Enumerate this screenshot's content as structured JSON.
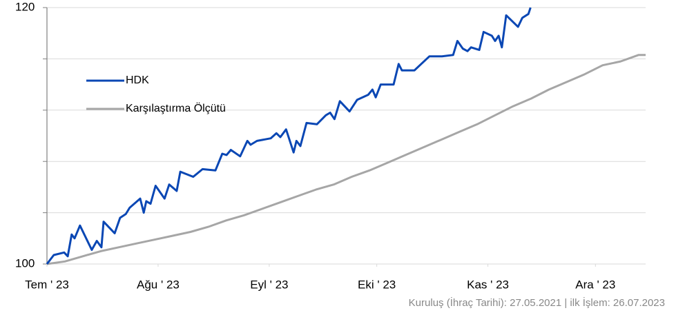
{
  "chart_data": {
    "type": "line",
    "series": [
      {
        "name": "HDK",
        "color": "#0a47b4",
        "x": [
          0,
          1.9,
          4.8,
          5.8,
          6.9,
          7.7,
          9.2,
          12.5,
          13.9,
          15.2,
          15.8,
          18.9,
          20.4,
          22.0,
          23.1,
          26.0,
          27.0,
          27.7,
          28.9,
          30.3,
          32.8,
          34.1,
          36.2,
          37.2,
          40.8,
          43.4,
          47.0,
          48.9,
          50.1,
          51.3,
          53.9,
          55.9,
          56.8,
          58.6,
          62.4,
          64.0,
          65.1,
          66.7,
          68.8,
          69.6,
          70.7,
          72.4,
          75.3,
          77.8,
          79.0,
          80.2,
          81.7,
          84.4,
          86.5,
          89.6,
          90.8,
          91.7,
          93.1,
          96.7,
          98.1,
          99.0,
          102.5,
          104.4,
          106.7,
          110.2,
          113.3,
          114.5,
          116.0,
          117.3,
          118.3,
          120.6,
          121.8,
          124.1,
          125.0,
          126.0,
          126.9,
          128.1,
          131.4,
          132.6,
          134.3,
          134.9
        ],
        "values": [
          100,
          100.7,
          100.9,
          100.6,
          102.3,
          102.0,
          103.0,
          101.1,
          101.8,
          101.3,
          103.3,
          102.4,
          103.6,
          103.9,
          104.4,
          105.1,
          104.0,
          104.9,
          104.7,
          106.1,
          105.1,
          106.2,
          105.7,
          107.2,
          106.8,
          107.4,
          107.3,
          108.6,
          108.5,
          108.9,
          108.4,
          109.6,
          109.3,
          109.6,
          109.8,
          110.2,
          109.9,
          110.5,
          108.7,
          109.6,
          109.2,
          111.0,
          110.9,
          111.6,
          111.8,
          111.3,
          112.7,
          111.9,
          112.8,
          113.2,
          113.6,
          113.0,
          114.0,
          114.0,
          115.6,
          115.1,
          115.1,
          115.6,
          116.2,
          116.2,
          116.3,
          117.4,
          116.8,
          116.6,
          116.9,
          116.7,
          118.1,
          117.8,
          117.4,
          117.8,
          116.9,
          119.4,
          118.5,
          119.2,
          119.5,
          120.0
        ]
      },
      {
        "name": "Karşılaştırma Ölçütü",
        "color": "#a6a6a6",
        "x": [
          0,
          5,
          10,
          15,
          20,
          25,
          30,
          35,
          40,
          45,
          50,
          55,
          60,
          65,
          70,
          75,
          80,
          85,
          90,
          95,
          100,
          105,
          110,
          115,
          120,
          125,
          130,
          135,
          140,
          145,
          150,
          155,
          160,
          165,
          167
        ],
        "values": [
          100,
          100.2,
          100.6,
          101.0,
          101.3,
          101.6,
          101.9,
          102.2,
          102.5,
          102.9,
          103.4,
          103.8,
          104.3,
          104.8,
          105.3,
          105.8,
          106.2,
          106.8,
          107.3,
          107.9,
          108.5,
          109.1,
          109.7,
          110.3,
          110.9,
          111.6,
          112.3,
          112.9,
          113.6,
          114.2,
          114.8,
          115.5,
          115.8,
          116.3,
          116.3
        ]
      }
    ],
    "xlim": [
      0,
      167
    ],
    "xticks": [
      {
        "value": 0,
        "label": "Tem ' 23"
      },
      {
        "value": 31,
        "label": "Ağu ' 23"
      },
      {
        "value": 62,
        "label": "Eyl ' 23"
      },
      {
        "value": 92,
        "label": "Eki ' 23"
      },
      {
        "value": 123,
        "label": "Kas ' 23"
      },
      {
        "value": 153,
        "label": "Ara ' 23"
      }
    ],
    "ylim": [
      100,
      120
    ],
    "yticks": [
      100,
      120
    ],
    "minor_yticks": [
      104,
      108,
      112,
      116
    ],
    "grid": true,
    "legend": "upper left",
    "footnote": "Kuruluş (İhraç Tarihi): 27.05.2021 | ilk İşlem: 26.07.2023"
  }
}
